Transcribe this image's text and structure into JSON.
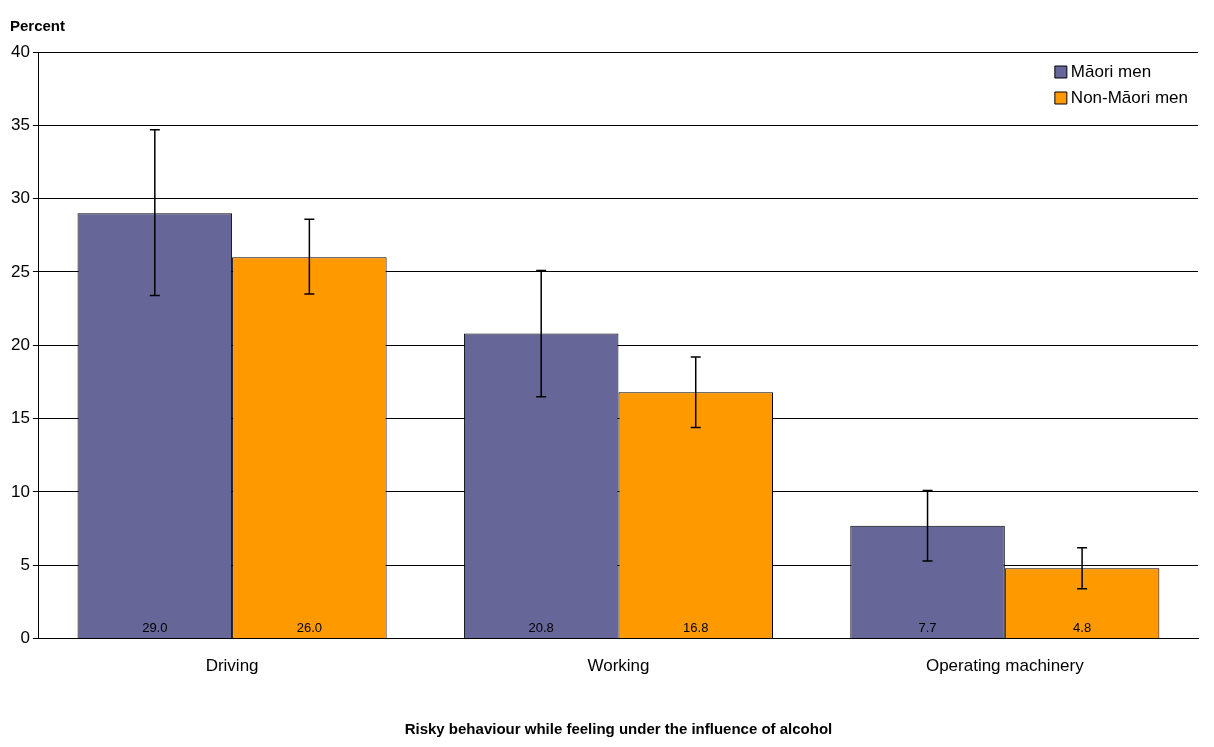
{
  "chart_data": {
    "type": "bar",
    "xlabel": "Risky behaviour while feeling under the influence of alcohol",
    "ylabel": "Percent",
    "categories": [
      "Driving",
      "Working",
      "Operating machinery"
    ],
    "series": [
      {
        "name": "Māori men",
        "color": "#666699",
        "values": [
          29.0,
          20.8,
          7.7
        ],
        "errors": [
          [
            23.4,
            34.7
          ],
          [
            16.5,
            25.1
          ],
          [
            5.3,
            10.1
          ]
        ],
        "value_labels": [
          "29.0",
          "20.8",
          "7.7"
        ]
      },
      {
        "name": "Non-Māori men",
        "color": "#ff9900",
        "values": [
          26.0,
          16.8,
          4.8
        ],
        "errors": [
          [
            23.5,
            28.6
          ],
          [
            14.4,
            19.2
          ],
          [
            3.4,
            6.2
          ]
        ],
        "value_labels": [
          "26.0",
          "16.8",
          "4.8"
        ]
      }
    ],
    "ylim": [
      0,
      40
    ],
    "yticks": [
      0,
      5,
      10,
      15,
      20,
      25,
      30,
      35,
      40
    ],
    "grid": "y",
    "legend": "top right"
  }
}
